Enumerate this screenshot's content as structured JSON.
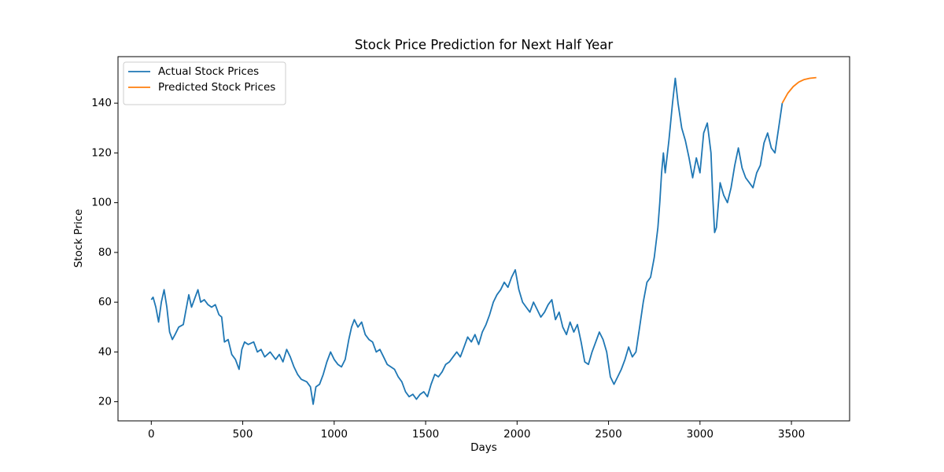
{
  "chart_data": {
    "type": "line",
    "title": "Stock Price Prediction for Next Half Year",
    "x_label": "Days",
    "y_label": "Stock Price",
    "xlim": [
      -182,
      3818
    ],
    "ylim": [
      12.3,
      158.7
    ],
    "xticks": [
      0,
      500,
      1000,
      1500,
      2000,
      2500,
      3000,
      3500
    ],
    "yticks": [
      20,
      40,
      60,
      80,
      100,
      120,
      140
    ],
    "legend": "upper left",
    "series": [
      {
        "name": "Actual Stock Prices",
        "color": "#1f77b4",
        "x": [
          0,
          10,
          25,
          40,
          55,
          70,
          85,
          100,
          115,
          130,
          150,
          175,
          190,
          205,
          220,
          240,
          255,
          270,
          290,
          310,
          330,
          350,
          370,
          385,
          400,
          420,
          440,
          460,
          480,
          495,
          510,
          530,
          560,
          580,
          600,
          620,
          650,
          680,
          700,
          720,
          740,
          760,
          780,
          800,
          820,
          850,
          870,
          885,
          900,
          920,
          940,
          960,
          980,
          1000,
          1020,
          1040,
          1060,
          1080,
          1095,
          1110,
          1130,
          1150,
          1170,
          1190,
          1210,
          1230,
          1250,
          1270,
          1290,
          1310,
          1330,
          1350,
          1370,
          1390,
          1410,
          1430,
          1450,
          1470,
          1490,
          1510,
          1530,
          1550,
          1570,
          1590,
          1610,
          1630,
          1650,
          1670,
          1690,
          1710,
          1730,
          1750,
          1770,
          1790,
          1810,
          1830,
          1850,
          1870,
          1890,
          1910,
          1930,
          1950,
          1970,
          1990,
          2010,
          2030,
          2050,
          2070,
          2090,
          2110,
          2130,
          2150,
          2170,
          2190,
          2210,
          2230,
          2250,
          2270,
          2290,
          2310,
          2330,
          2350,
          2370,
          2390,
          2410,
          2430,
          2450,
          2470,
          2490,
          2510,
          2530,
          2550,
          2570,
          2590,
          2610,
          2630,
          2650,
          2670,
          2690,
          2710,
          2730,
          2750,
          2770,
          2780,
          2790,
          2800,
          2810,
          2830,
          2850,
          2865,
          2880,
          2900,
          2920,
          2940,
          2960,
          2980,
          3000,
          3020,
          3040,
          3060,
          3070,
          3080,
          3090,
          3110,
          3130,
          3150,
          3170,
          3190,
          3210,
          3230,
          3250,
          3270,
          3290,
          3310,
          3330,
          3350,
          3370,
          3390,
          3410,
          3430,
          3450
        ],
        "values": [
          61,
          62,
          58,
          52,
          60,
          65,
          58,
          48,
          45,
          47,
          50,
          51,
          57,
          63,
          58,
          62,
          65,
          60,
          61,
          59,
          58,
          59,
          55,
          54,
          44,
          45,
          39,
          37,
          33,
          41,
          44,
          43,
          44,
          40,
          41,
          38,
          40,
          37,
          39,
          36,
          41,
          38,
          34,
          31,
          29,
          28,
          26,
          19,
          26,
          27,
          31,
          36,
          40,
          37,
          35,
          34,
          37,
          45,
          50,
          53,
          50,
          52,
          47,
          45,
          44,
          40,
          41,
          38,
          35,
          34,
          33,
          30,
          28,
          24,
          22,
          23,
          21,
          23,
          24,
          22,
          27,
          31,
          30,
          32,
          35,
          36,
          38,
          40,
          38,
          42,
          46,
          44,
          47,
          43,
          48,
          51,
          55,
          60,
          63,
          65,
          68,
          66,
          70,
          73,
          65,
          60,
          58,
          56,
          60,
          57,
          54,
          56,
          59,
          61,
          53,
          56,
          50,
          47,
          52,
          48,
          51,
          44,
          36,
          35,
          40,
          44,
          48,
          45,
          40,
          30,
          27,
          30,
          33,
          37,
          42,
          38,
          40,
          50,
          60,
          68,
          70,
          78,
          90,
          100,
          112,
          120,
          112,
          125,
          140,
          150,
          140,
          130,
          125,
          118,
          110,
          118,
          112,
          128,
          132,
          120,
          102,
          88,
          90,
          108,
          103,
          100,
          106,
          115,
          122,
          114,
          110,
          108,
          106,
          112,
          115,
          124,
          128,
          122,
          120,
          130,
          140
        ]
      },
      {
        "name": "Predicted Stock Prices",
        "color": "#ff7f0e",
        "x": [
          3450,
          3480,
          3510,
          3540,
          3570,
          3600,
          3636
        ],
        "values": [
          140,
          144,
          146.7,
          148.5,
          149.5,
          150,
          150.3
        ]
      }
    ]
  }
}
